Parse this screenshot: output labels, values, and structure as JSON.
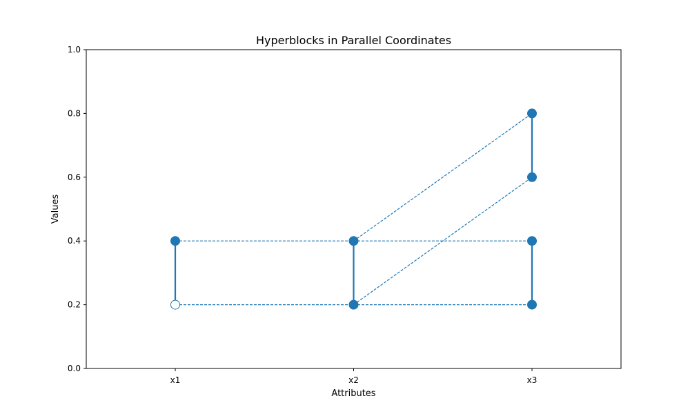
{
  "chart_data": {
    "type": "line",
    "title": "Hyperblocks in Parallel Coordinates",
    "xlabel": "Attributes",
    "ylabel": "Values",
    "categories": [
      "x1",
      "x2",
      "x3"
    ],
    "ylim": [
      0,
      1
    ],
    "yticks": [
      "0.0",
      "0.2",
      "0.4",
      "0.6",
      "0.8",
      "1.0"
    ],
    "grid": false,
    "color": "#1f77b4",
    "series": [
      {
        "values": [
          0.4,
          0.4,
          0.4
        ],
        "style": "dashed"
      },
      {
        "values": [
          0.2,
          0.2,
          0.2
        ],
        "style": "dashed"
      },
      {
        "values": [
          null,
          0.4,
          0.8
        ],
        "style": "dashed"
      },
      {
        "values": [
          null,
          0.2,
          0.6
        ],
        "style": "dashed"
      }
    ],
    "intervals": [
      {
        "category": "x1",
        "low": 0.2,
        "high": 0.4,
        "low_marker": "hollow",
        "high_marker": "filled"
      },
      {
        "category": "x2",
        "low": 0.2,
        "high": 0.4,
        "low_marker": "filled",
        "high_marker": "filled"
      },
      {
        "category": "x3",
        "low": 0.2,
        "high": 0.4,
        "low_marker": "filled",
        "high_marker": "filled"
      },
      {
        "category": "x3",
        "low": 0.6,
        "high": 0.8,
        "low_marker": "filled",
        "high_marker": "filled"
      }
    ]
  }
}
